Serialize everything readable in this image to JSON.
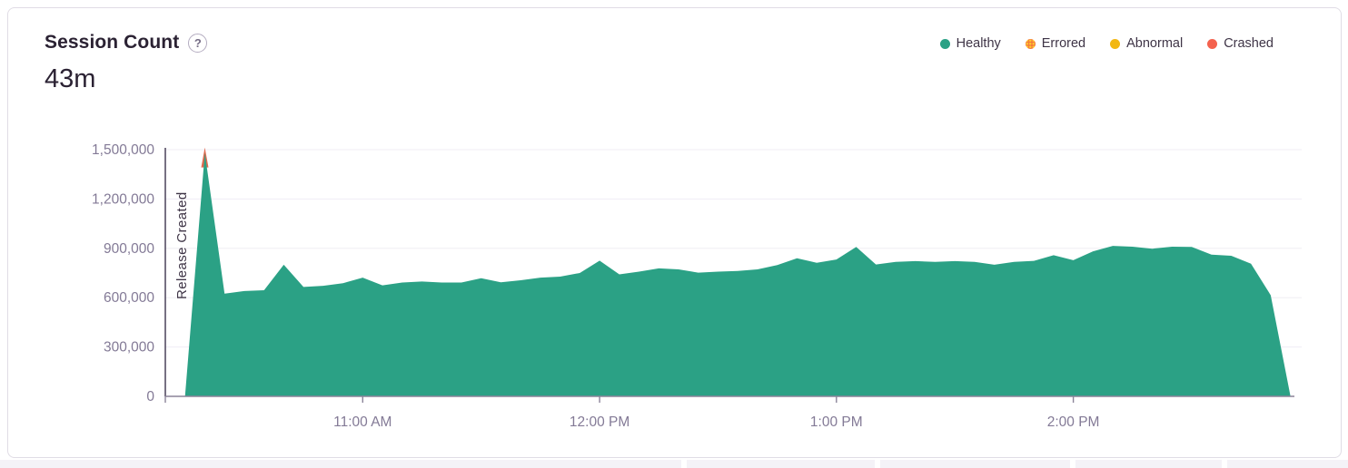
{
  "card": {
    "title": "Session Count",
    "help_icon": "?",
    "total": "43m"
  },
  "legend": [
    {
      "label": "Healthy",
      "color": "#2BA185",
      "style": "solid"
    },
    {
      "label": "Errored",
      "color": "#F57C3A",
      "style": "dotted",
      "dot_accent": "#FFCB2E"
    },
    {
      "label": "Abnormal",
      "color": "#F2B712",
      "style": "solid"
    },
    {
      "label": "Crashed",
      "color": "#F4624E",
      "style": "solid"
    }
  ],
  "chart_data": {
    "type": "area",
    "title": "Session Count",
    "total_label": "43m",
    "xlabel": "",
    "ylabel": "",
    "ylim": [
      0,
      1500000
    ],
    "xlim": [
      "10:10 AM",
      "2:56 PM"
    ],
    "grid": true,
    "legend_position": "top-right",
    "yticks": [
      {
        "value": 0,
        "label": "0"
      },
      {
        "value": 300000,
        "label": "300,000"
      },
      {
        "value": 600000,
        "label": "600,000"
      },
      {
        "value": 900000,
        "label": "900,000"
      },
      {
        "value": 1200000,
        "label": "1,200,000"
      },
      {
        "value": 1500000,
        "label": "1,500,000"
      }
    ],
    "xticks": [
      {
        "time": "11:00 AM",
        "label": "11:00 AM"
      },
      {
        "time": "12:00 PM",
        "label": "12:00 PM"
      },
      {
        "time": "1:00 PM",
        "label": "1:00 PM"
      },
      {
        "time": "2:00 PM",
        "label": "2:00 PM"
      }
    ],
    "annotation": {
      "label": "Release Created",
      "time": "10:10 AM"
    },
    "series": [
      {
        "name": "Healthy",
        "color": "#2BA185",
        "x": [
          "10:15 AM",
          "10:20 AM",
          "10:25 AM",
          "10:30 AM",
          "10:35 AM",
          "10:40 AM",
          "10:45 AM",
          "10:50 AM",
          "10:55 AM",
          "11:00 AM",
          "11:05 AM",
          "11:10 AM",
          "11:15 AM",
          "11:20 AM",
          "11:25 AM",
          "11:30 AM",
          "11:35 AM",
          "11:40 AM",
          "11:45 AM",
          "11:50 AM",
          "11:55 AM",
          "12:00 PM",
          "12:05 PM",
          "12:10 PM",
          "12:15 PM",
          "12:20 PM",
          "12:25 PM",
          "12:30 PM",
          "12:35 PM",
          "12:40 PM",
          "12:45 PM",
          "12:50 PM",
          "12:55 PM",
          "1:00 PM",
          "1:05 PM",
          "1:10 PM",
          "1:15 PM",
          "1:20 PM",
          "1:25 PM",
          "1:30 PM",
          "1:35 PM",
          "1:40 PM",
          "1:45 PM",
          "1:50 PM",
          "1:55 PM",
          "2:00 PM",
          "2:05 PM",
          "2:10 PM",
          "2:15 PM",
          "2:20 PM",
          "2:25 PM",
          "2:30 PM",
          "2:35 PM",
          "2:40 PM",
          "2:45 PM",
          "2:50 PM",
          "2:55 PM"
        ],
        "values": [
          0,
          1480000,
          625000,
          640000,
          645000,
          800000,
          665000,
          672000,
          688000,
          722000,
          675000,
          692000,
          698000,
          692000,
          692000,
          718000,
          694000,
          706000,
          722000,
          728000,
          750000,
          825000,
          742000,
          758000,
          778000,
          772000,
          752000,
          758000,
          762000,
          772000,
          798000,
          840000,
          812000,
          832000,
          908000,
          802000,
          818000,
          822000,
          818000,
          822000,
          818000,
          800000,
          818000,
          824000,
          858000,
          828000,
          882000,
          915000,
          910000,
          898000,
          910000,
          908000,
          862000,
          855000,
          806000,
          615000,
          0
        ]
      }
    ],
    "errored_tip": {
      "time": "10:20 AM",
      "color": "#E1694F"
    }
  },
  "colors": {
    "axis_label": "#837A96",
    "axis_line": "#8B8499",
    "tick": "#8B8499",
    "gridline": "#F0EDF4",
    "release_line": "#554D63",
    "release_text": "#3E3446",
    "card_border": "#E0DCE5"
  }
}
